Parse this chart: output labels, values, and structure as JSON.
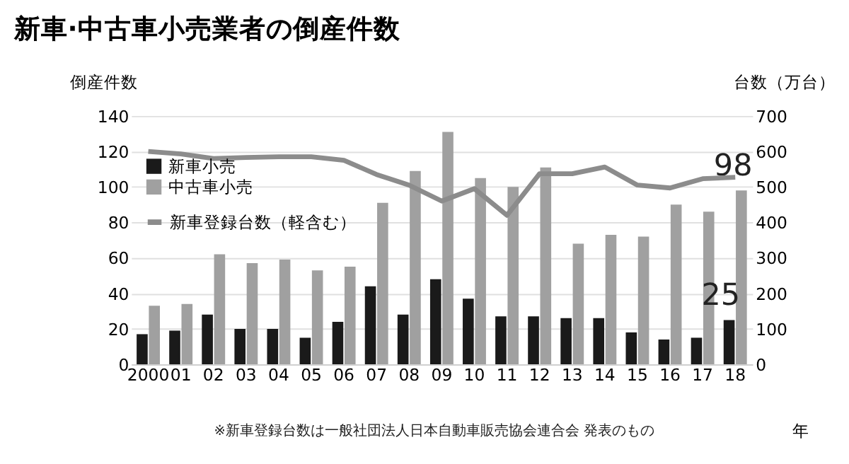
{
  "chart_data": {
    "type": "bar",
    "title": "新車·中古車小売業者の倒産件数",
    "ylabel": "倒産件数",
    "y2label": "台数（万台）",
    "xlabel": "年",
    "annotations": [
      "※新車登録台数は一般社団法人日本自動車販売協会連合会 発表のもの"
    ],
    "categories": [
      "2000",
      "01",
      "02",
      "03",
      "04",
      "05",
      "06",
      "07",
      "08",
      "09",
      "10",
      "11",
      "12",
      "13",
      "14",
      "15",
      "16",
      "17",
      "18"
    ],
    "series": [
      {
        "name": "新車小売",
        "type": "bar",
        "color": "#1a1a1a",
        "values": [
          17,
          19,
          28,
          20,
          20,
          15,
          24,
          44,
          28,
          48,
          37,
          27,
          27,
          26,
          26,
          18,
          14,
          15,
          25
        ],
        "value_labels": [
          null,
          null,
          null,
          null,
          null,
          null,
          null,
          null,
          null,
          null,
          null,
          null,
          null,
          null,
          null,
          null,
          null,
          null,
          "25"
        ]
      },
      {
        "name": "中古車小売",
        "type": "bar",
        "color": "#a0a0a0",
        "values": [
          33,
          34,
          62,
          57,
          59,
          53,
          55,
          91,
          109,
          131,
          105,
          100,
          111,
          68,
          73,
          72,
          90,
          86,
          98
        ],
        "value_labels": [
          null,
          null,
          null,
          null,
          null,
          null,
          null,
          null,
          null,
          null,
          null,
          null,
          null,
          null,
          null,
          null,
          null,
          null,
          "98"
        ]
      },
      {
        "name": "新車登録台数（軽含む）",
        "type": "line",
        "axis": "y2",
        "color": "#8c8c8c",
        "values": [
          600,
          593,
          580,
          583,
          585,
          585,
          575,
          535,
          505,
          460,
          495,
          420,
          537,
          537,
          556,
          505,
          497,
          523,
          527
        ]
      }
    ],
    "ylim": [
      0,
      140
    ],
    "yticks": [
      0,
      20,
      40,
      60,
      80,
      100,
      120,
      140
    ],
    "y2lim": [
      0,
      700
    ],
    "y2ticks": [
      0,
      100,
      200,
      300,
      400,
      500,
      600,
      700
    ],
    "grid": "y",
    "legend": "top left"
  }
}
